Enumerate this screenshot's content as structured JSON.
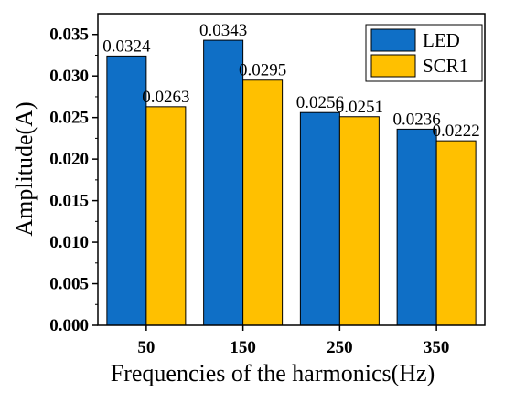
{
  "chart_data": {
    "type": "bar",
    "categories": [
      "50",
      "150",
      "250",
      "350"
    ],
    "series": [
      {
        "name": "LED",
        "color": "#0f6fc6",
        "values": [
          0.0324,
          0.0343,
          0.0256,
          0.0236
        ],
        "labels": [
          "0.0324",
          "0.0343",
          "0.0256",
          "0.0236"
        ]
      },
      {
        "name": "SCR1",
        "color": "#ffc000",
        "values": [
          0.0263,
          0.0295,
          0.0251,
          0.0222
        ],
        "labels": [
          "0.0263",
          "0.0295",
          "0.0251",
          "0.0222"
        ]
      }
    ],
    "xlabel": "Frequencies of the harmonics(Hz)",
    "ylabel": "Amplitude(A)",
    "ylim": [
      0,
      0.0375
    ],
    "yticks": [
      0.0,
      0.005,
      0.01,
      0.015,
      0.02,
      0.025,
      0.03,
      0.035
    ],
    "ytick_labels": [
      "0.000",
      "0.005",
      "0.010",
      "0.015",
      "0.020",
      "0.025",
      "0.030",
      "0.035"
    ],
    "grid": false,
    "legend_position": "top-right"
  }
}
